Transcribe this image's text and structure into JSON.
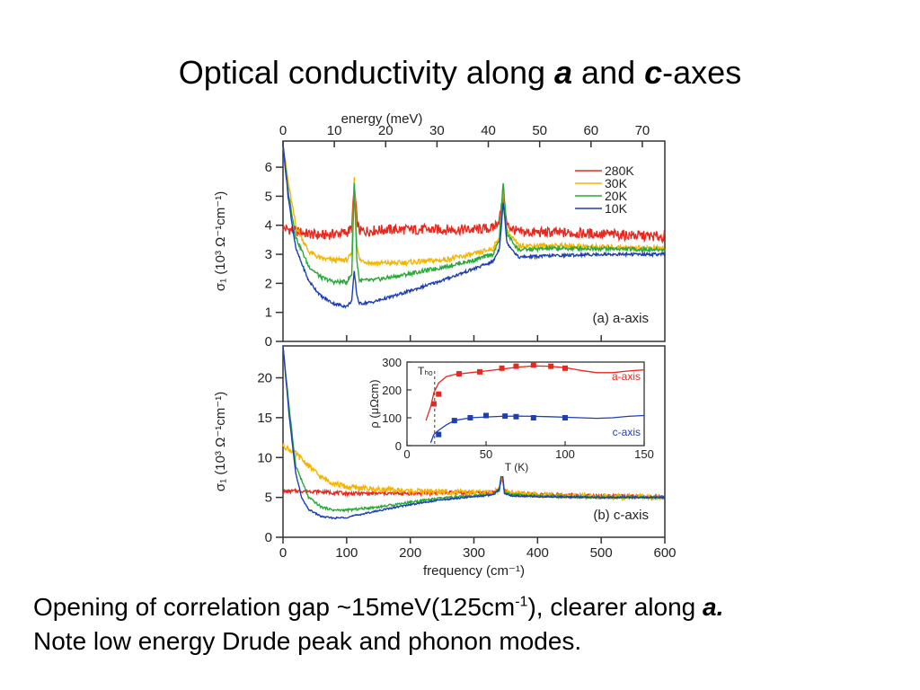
{
  "slide": {
    "title_before": "Optical conductivity along ",
    "title_a": "a",
    "title_mid": " and ",
    "title_c": "c",
    "title_after": "-axes",
    "caption_line1_before": "Opening of correlation gap ~15meV(125cm",
    "caption_sup": "-1",
    "caption_line1_after": "), clearer along ",
    "caption_line1_bold": "a.",
    "caption_line2": "Note low energy Drude peak and phonon modes."
  },
  "colors": {
    "280K": "#e8281e",
    "30K": "#f5b400",
    "20K": "#2aa83a",
    "10K": "#1e3fb4"
  },
  "chart_data": [
    {
      "id": "panel-a",
      "type": "line",
      "panel_label": "(a) a-axis",
      "xlabel": "frequency (cm⁻¹)",
      "top_axis_label": "energy (meV)",
      "top_ticks": [
        0,
        10,
        20,
        30,
        40,
        50,
        60,
        70
      ],
      "ylabel": "σ₁ (10³ Ω⁻¹cm⁻¹)",
      "xlim": [
        0,
        600
      ],
      "ylim": [
        0,
        6.9
      ],
      "yticks": [
        0,
        1,
        2,
        3,
        4,
        5,
        6
      ],
      "legend_position": "top-right",
      "series": [
        {
          "name": "280K",
          "color": "#e8281e",
          "noise": 0.18,
          "x": [
            0,
            20,
            40,
            60,
            80,
            100,
            108,
            112,
            116,
            120,
            130,
            160,
            200,
            250,
            300,
            330,
            340,
            346,
            352,
            370,
            420,
            500,
            600
          ],
          "y": [
            3.9,
            3.8,
            3.7,
            3.65,
            3.7,
            3.75,
            3.9,
            5.4,
            4.2,
            3.8,
            3.8,
            3.85,
            3.85,
            3.85,
            3.85,
            3.9,
            4.2,
            5.0,
            4.0,
            3.75,
            3.75,
            3.7,
            3.6
          ]
        },
        {
          "name": "30K",
          "color": "#f5b400",
          "noise": 0.09,
          "x": [
            0,
            8,
            20,
            40,
            60,
            80,
            100,
            108,
            112,
            116,
            120,
            140,
            180,
            250,
            300,
            330,
            340,
            346,
            352,
            370,
            420,
            500,
            600
          ],
          "y": [
            6.8,
            5.5,
            4.0,
            3.1,
            2.85,
            2.8,
            2.8,
            3.0,
            5.6,
            3.4,
            2.8,
            2.7,
            2.7,
            2.8,
            3.0,
            3.2,
            3.6,
            5.3,
            3.8,
            3.3,
            3.3,
            3.25,
            3.2
          ]
        },
        {
          "name": "20K",
          "color": "#2aa83a",
          "noise": 0.07,
          "x": [
            0,
            8,
            20,
            40,
            60,
            80,
            100,
            108,
            112,
            116,
            120,
            140,
            180,
            250,
            300,
            330,
            340,
            346,
            352,
            370,
            420,
            500,
            600
          ],
          "y": [
            6.8,
            5.2,
            3.6,
            2.6,
            2.2,
            2.05,
            2.05,
            2.3,
            5.4,
            2.8,
            2.1,
            2.1,
            2.25,
            2.55,
            2.8,
            3.0,
            3.5,
            5.5,
            3.7,
            3.15,
            3.2,
            3.2,
            3.15
          ]
        },
        {
          "name": "10K",
          "color": "#1e3fb4",
          "noise": 0.05,
          "x": [
            0,
            8,
            20,
            40,
            60,
            80,
            100,
            108,
            112,
            116,
            120,
            140,
            180,
            250,
            300,
            330,
            340,
            346,
            352,
            370,
            420,
            500,
            600
          ],
          "y": [
            6.8,
            5.0,
            3.2,
            2.1,
            1.55,
            1.3,
            1.2,
            1.4,
            2.4,
            1.6,
            1.3,
            1.35,
            1.6,
            2.1,
            2.5,
            2.75,
            3.2,
            4.8,
            3.4,
            2.9,
            2.95,
            3.0,
            3.0
          ]
        }
      ]
    },
    {
      "id": "panel-b",
      "type": "line",
      "panel_label": "(b) c-axis",
      "xlabel": "frequency (cm⁻¹)",
      "ylabel": "σ₁ (10³ Ω⁻¹cm⁻¹)",
      "xlim": [
        0,
        600
      ],
      "ylim": [
        0,
        24
      ],
      "xticks": [
        0,
        100,
        200,
        300,
        400,
        500,
        600
      ],
      "yticks": [
        0,
        5,
        10,
        15,
        20
      ],
      "series": [
        {
          "name": "280K",
          "color": "#e8281e",
          "noise": 0.22,
          "x": [
            0,
            20,
            40,
            60,
            80,
            100,
            150,
            200,
            250,
            300,
            330,
            340,
            344,
            348,
            360,
            400,
            500,
            600
          ],
          "y": [
            5.7,
            5.8,
            5.8,
            5.7,
            5.6,
            5.5,
            5.5,
            5.5,
            5.6,
            5.6,
            5.6,
            6.0,
            7.5,
            5.8,
            5.5,
            5.4,
            5.2,
            5.0
          ]
        },
        {
          "name": "30K",
          "color": "#f5b400",
          "noise": 0.35,
          "x": [
            0,
            20,
            40,
            60,
            80,
            100,
            150,
            200,
            250,
            300,
            330,
            340,
            344,
            348,
            360,
            400,
            500,
            600
          ],
          "y": [
            11.5,
            10.5,
            9.0,
            7.5,
            6.8,
            6.3,
            6.0,
            5.8,
            5.7,
            5.6,
            5.6,
            6.0,
            8.0,
            5.8,
            5.5,
            5.3,
            5.1,
            5.0
          ]
        },
        {
          "name": "20K",
          "color": "#2aa83a",
          "noise": 0.15,
          "x": [
            0,
            10,
            20,
            40,
            60,
            80,
            100,
            150,
            200,
            250,
            300,
            330,
            340,
            344,
            348,
            360,
            400,
            500,
            600
          ],
          "y": [
            24,
            16,
            9.0,
            5.0,
            3.8,
            3.4,
            3.4,
            3.8,
            4.4,
            4.9,
            5.2,
            5.4,
            6.0,
            8.5,
            5.6,
            5.3,
            5.2,
            5.0,
            5.0
          ]
        },
        {
          "name": "10K",
          "color": "#1e3fb4",
          "noise": 0.1,
          "x": [
            0,
            10,
            20,
            30,
            40,
            60,
            80,
            100,
            130,
            160,
            200,
            250,
            300,
            330,
            340,
            344,
            348,
            360,
            400,
            500,
            600
          ],
          "y": [
            24,
            15,
            8.0,
            4.8,
            3.5,
            2.6,
            2.4,
            2.5,
            3.0,
            3.5,
            4.1,
            4.7,
            5.1,
            5.3,
            6.0,
            8.6,
            5.5,
            5.2,
            5.1,
            5.0,
            5.0
          ]
        }
      ]
    },
    {
      "id": "panel-inset",
      "type": "line",
      "xlabel": "T (K)",
      "ylabel": "ρ (μΩcm)",
      "xlim": [
        0,
        150
      ],
      "ylim": [
        0,
        300
      ],
      "xticks": [
        0,
        50,
        100,
        150
      ],
      "yticks": [
        0,
        100,
        200,
        300
      ],
      "annotation": "Tₕₒ",
      "series": [
        {
          "name": "a-axis",
          "color": "#e8281e",
          "x": [
            12,
            15,
            17,
            20,
            25,
            30,
            40,
            50,
            60,
            70,
            80,
            90,
            100,
            110,
            120,
            130,
            140,
            150
          ],
          "y": [
            90,
            140,
            190,
            225,
            248,
            255,
            262,
            268,
            275,
            282,
            286,
            285,
            280,
            270,
            262,
            262,
            268,
            272
          ],
          "markers_x": [
            17,
            20,
            33,
            46,
            60,
            69,
            80,
            91,
            100
          ],
          "markers_y": [
            150,
            185,
            258,
            265,
            278,
            285,
            290,
            285,
            278
          ]
        },
        {
          "name": "c-axis",
          "color": "#1e3fb4",
          "x": [
            15,
            17,
            20,
            25,
            30,
            40,
            50,
            60,
            70,
            80,
            90,
            100,
            110,
            120,
            130,
            140,
            150
          ],
          "y": [
            10,
            40,
            55,
            75,
            90,
            100,
            103,
            105,
            106,
            105,
            104,
            102,
            100,
            98,
            100,
            105,
            108
          ],
          "markers_x": [
            20,
            30,
            40,
            50,
            62,
            69,
            80,
            100
          ],
          "markers_y": [
            40,
            90,
            100,
            108,
            106,
            104,
            100,
            100
          ]
        }
      ]
    }
  ]
}
